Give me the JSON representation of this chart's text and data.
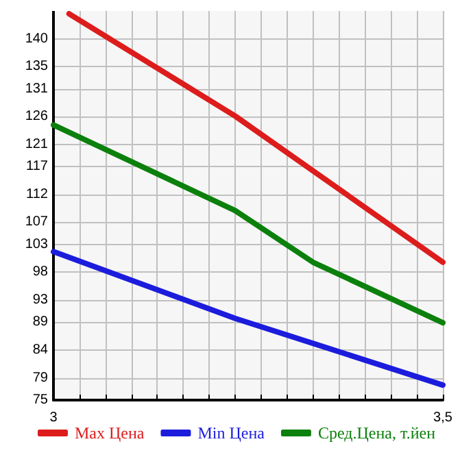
{
  "chart_data": {
    "type": "line",
    "xlim": [
      3,
      3.5
    ],
    "xticks": [
      {
        "value": 3,
        "label": "3"
      },
      {
        "value": 3.0333,
        "label": null
      },
      {
        "value": 3.0667,
        "label": null
      },
      {
        "value": 3.1,
        "label": null
      },
      {
        "value": 3.1333,
        "label": null
      },
      {
        "value": 3.1667,
        "label": null
      },
      {
        "value": 3.2,
        "label": null
      },
      {
        "value": 3.2333,
        "label": null
      },
      {
        "value": 3.2667,
        "label": null
      },
      {
        "value": 3.3,
        "label": null
      },
      {
        "value": 3.3333,
        "label": null
      },
      {
        "value": 3.3667,
        "label": null
      },
      {
        "value": 3.4,
        "label": null
      },
      {
        "value": 3.4333,
        "label": null
      },
      {
        "value": 3.4667,
        "label": null
      },
      {
        "value": 3.5,
        "label": "3,5"
      }
    ],
    "ylim": [
      75,
      145
    ],
    "yticks": [
      75,
      79,
      84,
      89,
      93,
      98,
      103,
      107,
      112,
      117,
      121,
      126,
      131,
      135,
      140
    ],
    "grid": true,
    "legend": "bottom",
    "marker": "none",
    "line_style": "solid",
    "series": [
      {
        "name": "Max Цена",
        "color": "#dd1c1c",
        "x": [
          3.02,
          3.2333,
          3.5
        ],
        "values": [
          144.5,
          126.1,
          99.8
        ]
      },
      {
        "name": "Min Цена",
        "color": "#1c1cdd",
        "x": [
          3,
          3.2333,
          3.5
        ],
        "values": [
          101.7,
          89.7,
          77.7
        ]
      },
      {
        "name": "Сред.Цена, т.йен",
        "color": "#0c800c",
        "x": [
          3,
          3.2333,
          3.3333,
          3.5
        ],
        "values": [
          124.5,
          109.1,
          99.8,
          88.9
        ]
      }
    ]
  }
}
